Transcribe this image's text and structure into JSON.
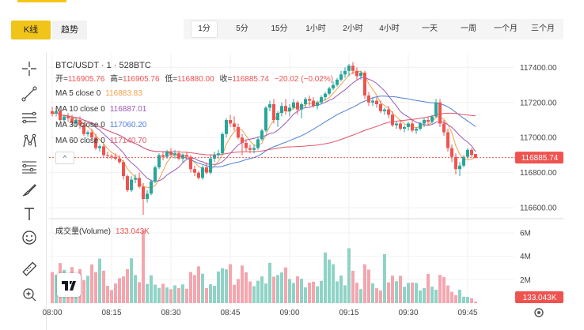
{
  "header": {
    "mode_tabs": [
      {
        "label": "K线",
        "active": true
      },
      {
        "label": "趋势",
        "active": false
      }
    ],
    "intervals": [
      {
        "label": "1分",
        "active": true
      },
      {
        "label": "5分"
      },
      {
        "label": "15分"
      },
      {
        "label": "1小时"
      },
      {
        "label": "2小时"
      },
      {
        "label": "4小时"
      },
      {
        "label": "一天"
      },
      {
        "label": "一周"
      },
      {
        "label": "一个月"
      },
      {
        "label": "三个月"
      }
    ]
  },
  "toolbar": {
    "tools": [
      "crosshair-icon",
      "trend-line-icon",
      "parallel-lines-icon",
      "pattern-icon",
      "fib-retracement-icon",
      "brush-icon",
      "text-icon",
      "emoji-icon",
      "ruler-icon",
      "zoom-in-icon"
    ]
  },
  "legend": {
    "symbol": "BTC/USDT · 1 · 528BTC",
    "open_label": "开=",
    "open": "116905.76",
    "high_label": "高=",
    "high": "116905.76",
    "low_label": "低=",
    "low": "116880.00",
    "close_label": "收=",
    "close": "116885.74",
    "change": "−20.02 (−0.02%)",
    "ma": [
      {
        "label": "MA 5 close 0",
        "value": "116883.83",
        "color": "#f2a04a"
      },
      {
        "label": "MA 10 close 0",
        "value": "116887.01",
        "color": "#9b59b6"
      },
      {
        "label": "MA 30 close 0",
        "value": "117060.20",
        "color": "#4f7fd8"
      },
      {
        "label": "MA 60 close 0",
        "value": "117140.70",
        "color": "#e0566a"
      }
    ],
    "collapse": "^"
  },
  "volume_legend": {
    "label": "成交量(Volume)",
    "value": "133.043K"
  },
  "price_badge": "116885.74",
  "volume_badge": "133.043K",
  "colors": {
    "up": "#26a69a",
    "down": "#ef5350",
    "vol_up": "#8fd3c6",
    "vol_down": "#f4a6ae",
    "accent": "#f0c419"
  },
  "chart_data": {
    "type": "candlestick",
    "y_ticks": [
      117400,
      117200,
      117000,
      116800,
      116600
    ],
    "ylim": [
      116560,
      117460
    ],
    "volume_ticks": [
      {
        "label": "6M",
        "v": 6000000
      },
      {
        "label": "4M",
        "v": 4000000
      },
      {
        "label": "2M",
        "v": 2000000
      }
    ],
    "volume_ylim": [
      0,
      7000000
    ],
    "x_ticks": [
      {
        "label": "08:00",
        "i": 0
      },
      {
        "label": "08:15",
        "i": 15
      },
      {
        "label": "08:30",
        "i": 30
      },
      {
        "label": "08:45",
        "i": 45
      },
      {
        "label": "09:00",
        "i": 60
      },
      {
        "label": "09:15",
        "i": 75
      },
      {
        "label": "09:30",
        "i": 90
      },
      {
        "label": "09:45",
        "i": 105
      }
    ],
    "last_price": 116885.74,
    "last_volume": 133043,
    "candles": [
      {
        "o": 117150,
        "h": 117175,
        "c": 117135,
        "l": 117120,
        "v": 2650000
      },
      {
        "o": 117140,
        "h": 117170,
        "c": 117150,
        "l": 117120,
        "v": 2430000
      },
      {
        "o": 117150,
        "h": 117158,
        "c": 117100,
        "l": 117090,
        "v": 3420000
      },
      {
        "o": 117100,
        "h": 117130,
        "c": 117120,
        "l": 117080,
        "v": 2840000
      },
      {
        "o": 117120,
        "h": 117140,
        "c": 117110,
        "l": 117090,
        "v": 2480000
      },
      {
        "o": 117110,
        "h": 117130,
        "c": 117085,
        "l": 117070,
        "v": 3080000
      },
      {
        "o": 117080,
        "h": 117110,
        "c": 117100,
        "l": 117060,
        "v": 2350000
      },
      {
        "o": 117100,
        "h": 117120,
        "c": 117070,
        "l": 117050,
        "v": 2900000
      },
      {
        "o": 117070,
        "h": 117085,
        "c": 117020,
        "l": 117010,
        "v": 1960000
      },
      {
        "o": 117020,
        "h": 117040,
        "c": 117030,
        "l": 117005,
        "v": 2330000
      },
      {
        "o": 117030,
        "h": 117050,
        "c": 117000,
        "l": 116990,
        "v": 3300000
      },
      {
        "o": 117000,
        "h": 117020,
        "c": 116940,
        "l": 116930,
        "v": 2650000
      },
      {
        "o": 116940,
        "h": 116960,
        "c": 116950,
        "l": 116920,
        "v": 3790000
      },
      {
        "o": 116950,
        "h": 116965,
        "c": 116900,
        "l": 116885,
        "v": 2770000
      },
      {
        "o": 116900,
        "h": 116920,
        "c": 116895,
        "l": 116880,
        "v": 1480000
      },
      {
        "o": 116895,
        "h": 116905,
        "c": 116890,
        "l": 116875,
        "v": 1120000
      },
      {
        "o": 116890,
        "h": 116910,
        "c": 116880,
        "l": 116870,
        "v": 1680000
      },
      {
        "o": 116880,
        "h": 116900,
        "c": 116860,
        "l": 116850,
        "v": 2130000
      },
      {
        "o": 116860,
        "h": 116870,
        "c": 116780,
        "l": 116760,
        "v": 2280000
      },
      {
        "o": 116780,
        "h": 116790,
        "c": 116700,
        "l": 116690,
        "v": 2900000
      },
      {
        "o": 116700,
        "h": 116780,
        "c": 116760,
        "l": 116690,
        "v": 3820000
      },
      {
        "o": 116760,
        "h": 116790,
        "c": 116770,
        "l": 116740,
        "v": 2400000
      },
      {
        "o": 116770,
        "h": 116800,
        "c": 116720,
        "l": 116710,
        "v": 1790000
      },
      {
        "o": 116720,
        "h": 116740,
        "c": 116650,
        "l": 116560,
        "v": 6200000
      },
      {
        "o": 116650,
        "h": 116700,
        "c": 116680,
        "l": 116630,
        "v": 1640000
      },
      {
        "o": 116680,
        "h": 116760,
        "c": 116750,
        "l": 116670,
        "v": 2380000
      },
      {
        "o": 116750,
        "h": 116840,
        "c": 116830,
        "l": 116740,
        "v": 1580000
      },
      {
        "o": 116830,
        "h": 116910,
        "c": 116900,
        "l": 116820,
        "v": 1300000
      },
      {
        "o": 116900,
        "h": 116920,
        "c": 116890,
        "l": 116870,
        "v": 1650000
      },
      {
        "o": 116890,
        "h": 116930,
        "c": 116920,
        "l": 116880,
        "v": 1340000
      },
      {
        "o": 116920,
        "h": 116940,
        "c": 116900,
        "l": 116890,
        "v": 1190000
      },
      {
        "o": 116900,
        "h": 116930,
        "c": 116910,
        "l": 116880,
        "v": 1520000
      },
      {
        "o": 116910,
        "h": 116925,
        "c": 116880,
        "l": 116870,
        "v": 1290000
      },
      {
        "o": 116880,
        "h": 116910,
        "c": 116900,
        "l": 116860,
        "v": 1600000
      },
      {
        "o": 116900,
        "h": 116920,
        "c": 116890,
        "l": 116880,
        "v": 1230000
      },
      {
        "o": 116890,
        "h": 116900,
        "c": 116820,
        "l": 116800,
        "v": 2660000
      },
      {
        "o": 116820,
        "h": 116840,
        "c": 116800,
        "l": 116780,
        "v": 2390000
      },
      {
        "o": 116800,
        "h": 116810,
        "c": 116770,
        "l": 116760,
        "v": 3140000
      },
      {
        "o": 116770,
        "h": 116840,
        "c": 116830,
        "l": 116760,
        "v": 2510000
      },
      {
        "o": 116830,
        "h": 116860,
        "c": 116800,
        "l": 116790,
        "v": 1280000
      },
      {
        "o": 116800,
        "h": 116900,
        "c": 116880,
        "l": 116790,
        "v": 1620000
      },
      {
        "o": 116880,
        "h": 116920,
        "c": 116900,
        "l": 116860,
        "v": 1480000
      },
      {
        "o": 116900,
        "h": 116930,
        "c": 116910,
        "l": 116880,
        "v": 2700000
      },
      {
        "o": 116910,
        "h": 117030,
        "c": 117020,
        "l": 116900,
        "v": 2980000
      },
      {
        "o": 117020,
        "h": 117110,
        "c": 117100,
        "l": 117000,
        "v": 2880000
      },
      {
        "o": 117100,
        "h": 117130,
        "c": 117080,
        "l": 117060,
        "v": 3320000
      },
      {
        "o": 117080,
        "h": 117120,
        "c": 117060,
        "l": 117040,
        "v": 1570000
      },
      {
        "o": 117060,
        "h": 117080,
        "c": 117000,
        "l": 116990,
        "v": 2060000
      },
      {
        "o": 117000,
        "h": 117020,
        "c": 116970,
        "l": 116900,
        "v": 3210000
      },
      {
        "o": 116970,
        "h": 116990,
        "c": 116940,
        "l": 116920,
        "v": 2630000
      },
      {
        "o": 116940,
        "h": 116960,
        "c": 116930,
        "l": 116910,
        "v": 1850000
      },
      {
        "o": 116930,
        "h": 116960,
        "c": 116940,
        "l": 116910,
        "v": 1450000
      },
      {
        "o": 116940,
        "h": 117000,
        "c": 116990,
        "l": 116930,
        "v": 1910000
      },
      {
        "o": 116990,
        "h": 117050,
        "c": 117040,
        "l": 116980,
        "v": 2280000
      },
      {
        "o": 117040,
        "h": 117180,
        "c": 117170,
        "l": 117030,
        "v": 1680000
      },
      {
        "o": 117170,
        "h": 117210,
        "c": 117190,
        "l": 117150,
        "v": 3440000
      },
      {
        "o": 117190,
        "h": 117220,
        "c": 117100,
        "l": 117080,
        "v": 2260000
      },
      {
        "o": 117100,
        "h": 117150,
        "c": 117140,
        "l": 117060,
        "v": 2400000
      },
      {
        "o": 117140,
        "h": 117200,
        "c": 117180,
        "l": 117120,
        "v": 2620000
      },
      {
        "o": 117180,
        "h": 117220,
        "c": 117150,
        "l": 117130,
        "v": 3050000
      },
      {
        "o": 117150,
        "h": 117190,
        "c": 117170,
        "l": 117120,
        "v": 2060000
      },
      {
        "o": 117170,
        "h": 117220,
        "c": 117200,
        "l": 117160,
        "v": 1720000
      },
      {
        "o": 117200,
        "h": 117210,
        "c": 117160,
        "l": 117130,
        "v": 2290000
      },
      {
        "o": 117160,
        "h": 117200,
        "c": 117190,
        "l": 117110,
        "v": 2080000
      },
      {
        "o": 117190,
        "h": 117230,
        "c": 117220,
        "l": 117170,
        "v": 1350000
      },
      {
        "o": 117220,
        "h": 117240,
        "c": 117210,
        "l": 117180,
        "v": 1750000
      },
      {
        "o": 117210,
        "h": 117230,
        "c": 117180,
        "l": 117170,
        "v": 1830000
      },
      {
        "o": 117180,
        "h": 117210,
        "c": 117200,
        "l": 117160,
        "v": 1440000
      },
      {
        "o": 117200,
        "h": 117240,
        "c": 117230,
        "l": 117190,
        "v": 1900000
      },
      {
        "o": 117230,
        "h": 117260,
        "c": 117250,
        "l": 117210,
        "v": 4320000
      },
      {
        "o": 117250,
        "h": 117290,
        "c": 117280,
        "l": 117240,
        "v": 3720000
      },
      {
        "o": 117280,
        "h": 117320,
        "c": 117300,
        "l": 117270,
        "v": 3320000
      },
      {
        "o": 117300,
        "h": 117340,
        "c": 117330,
        "l": 117290,
        "v": 1860000
      },
      {
        "o": 117330,
        "h": 117380,
        "c": 117360,
        "l": 117320,
        "v": 2360000
      },
      {
        "o": 117360,
        "h": 117400,
        "c": 117380,
        "l": 117340,
        "v": 1520000
      },
      {
        "o": 117380,
        "h": 117420,
        "c": 117410,
        "l": 117350,
        "v": 4680000
      },
      {
        "o": 117410,
        "h": 117430,
        "c": 117380,
        "l": 117360,
        "v": 2760000
      },
      {
        "o": 117380,
        "h": 117400,
        "c": 117350,
        "l": 117330,
        "v": 1740000
      },
      {
        "o": 117350,
        "h": 117380,
        "c": 117370,
        "l": 117330,
        "v": 1200000
      },
      {
        "o": 117370,
        "h": 117380,
        "c": 117240,
        "l": 117220,
        "v": 3310000
      },
      {
        "o": 117240,
        "h": 117260,
        "c": 117200,
        "l": 117180,
        "v": 2860000
      },
      {
        "o": 117200,
        "h": 117230,
        "c": 117210,
        "l": 117180,
        "v": 1690000
      },
      {
        "o": 117210,
        "h": 117230,
        "c": 117190,
        "l": 117170,
        "v": 1270000
      },
      {
        "o": 117190,
        "h": 117210,
        "c": 117150,
        "l": 117140,
        "v": 1080000
      },
      {
        "o": 117150,
        "h": 117170,
        "c": 117160,
        "l": 117130,
        "v": 4180000
      },
      {
        "o": 117160,
        "h": 117180,
        "c": 117130,
        "l": 117110,
        "v": 1770000
      },
      {
        "o": 117130,
        "h": 117150,
        "c": 117070,
        "l": 117060,
        "v": 2350000
      },
      {
        "o": 117070,
        "h": 117090,
        "c": 117080,
        "l": 117050,
        "v": 1870000
      },
      {
        "o": 117080,
        "h": 117100,
        "c": 117050,
        "l": 117040,
        "v": 2340000
      },
      {
        "o": 117050,
        "h": 117070,
        "c": 117060,
        "l": 117030,
        "v": 1400000
      },
      {
        "o": 117060,
        "h": 117090,
        "c": 117080,
        "l": 117040,
        "v": 1730000
      },
      {
        "o": 117080,
        "h": 117100,
        "c": 117040,
        "l": 117030,
        "v": 1760000
      },
      {
        "o": 117040,
        "h": 117060,
        "c": 117050,
        "l": 117020,
        "v": 1720000
      },
      {
        "o": 117050,
        "h": 117090,
        "c": 117080,
        "l": 117040,
        "v": 1080000
      },
      {
        "o": 117080,
        "h": 117110,
        "c": 117100,
        "l": 117060,
        "v": 1290000
      },
      {
        "o": 117100,
        "h": 117120,
        "c": 117090,
        "l": 117070,
        "v": 2500000
      },
      {
        "o": 117090,
        "h": 117130,
        "c": 117120,
        "l": 117080,
        "v": 1410000
      },
      {
        "o": 117120,
        "h": 117220,
        "c": 117200,
        "l": 117110,
        "v": 1150000
      },
      {
        "o": 117200,
        "h": 117220,
        "c": 117080,
        "l": 117060,
        "v": 2410000
      },
      {
        "o": 117080,
        "h": 117100,
        "c": 117030,
        "l": 117010,
        "v": 2230000
      },
      {
        "o": 117030,
        "h": 117050,
        "c": 116940,
        "l": 116920,
        "v": 1510000
      },
      {
        "o": 116940,
        "h": 116960,
        "c": 116890,
        "l": 116860,
        "v": 970000
      },
      {
        "o": 116890,
        "h": 116910,
        "c": 116820,
        "l": 116790,
        "v": 680000
      },
      {
        "o": 116820,
        "h": 116860,
        "c": 116840,
        "l": 116780,
        "v": 1150000
      },
      {
        "o": 116840,
        "h": 116900,
        "c": 116890,
        "l": 116830,
        "v": 550000
      },
      {
        "o": 116890,
        "h": 116940,
        "c": 116930,
        "l": 116880,
        "v": 540000
      },
      {
        "o": 116930,
        "h": 116940,
        "c": 116900,
        "l": 116890,
        "v": 420000
      },
      {
        "o": 116905.76,
        "h": 116905.76,
        "c": 116885.74,
        "l": 116880,
        "v": 133043
      }
    ]
  }
}
